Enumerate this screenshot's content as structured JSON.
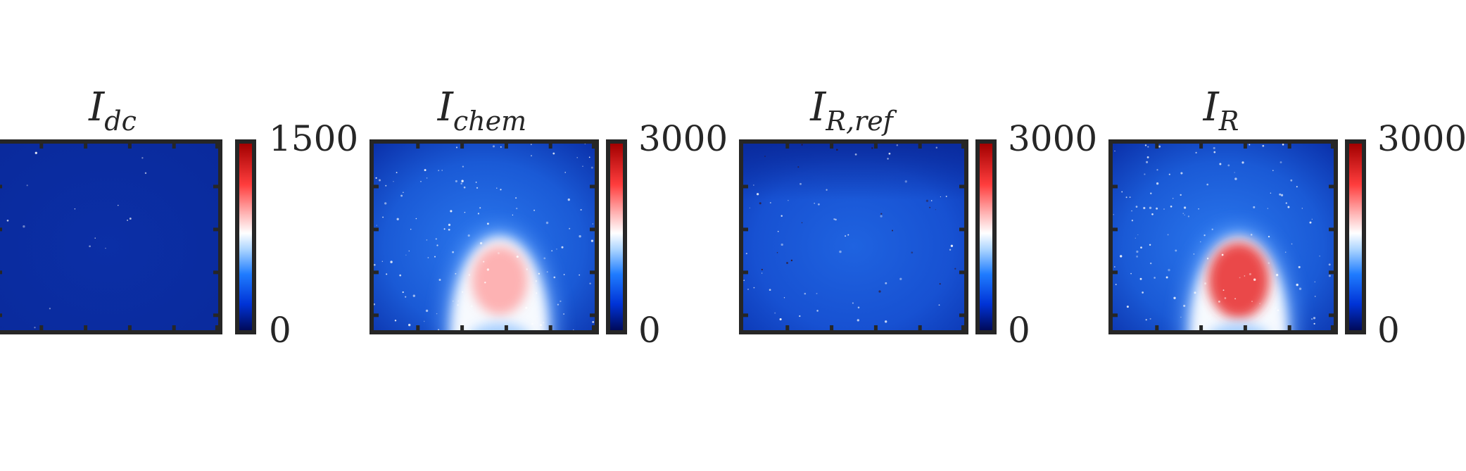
{
  "chart_data": [
    {
      "type": "heatmap",
      "title": {
        "main": "I",
        "sub": "dc"
      },
      "colorbar": {
        "min": 0,
        "max": 1500,
        "tick_labels": [
          "1500",
          "0"
        ]
      },
      "field": "uniform",
      "level": 0.06,
      "hot_fraction": 0.0
    },
    {
      "type": "heatmap",
      "title": {
        "main": "I",
        "sub": "chem"
      },
      "colorbar": {
        "min": 0,
        "max": 3000,
        "tick_labels": [
          "3000",
          "0"
        ]
      },
      "field": "arch",
      "level": 0.22,
      "hot_fraction": 0.55
    },
    {
      "type": "heatmap",
      "title": {
        "main": "I",
        "sub": "R,ref"
      },
      "colorbar": {
        "min": 0,
        "max": 3000,
        "tick_labels": [
          "3000",
          "0"
        ]
      },
      "field": "flat-speckled",
      "level": 0.18,
      "hot_fraction": 0.0
    },
    {
      "type": "heatmap",
      "title": {
        "main": "I",
        "sub": "R"
      },
      "colorbar": {
        "min": 0,
        "max": 3000,
        "tick_labels": [
          "3000",
          "0"
        ]
      },
      "field": "arch",
      "level": 0.24,
      "hot_fraction": 0.7
    }
  ],
  "colors": {
    "frame": "#262626",
    "dark_blue": "#0a2a9c",
    "mid_blue": "#1f6ee8",
    "white": "#ffffff",
    "pink": "#ff9a9a",
    "red": "#e82b2b"
  }
}
